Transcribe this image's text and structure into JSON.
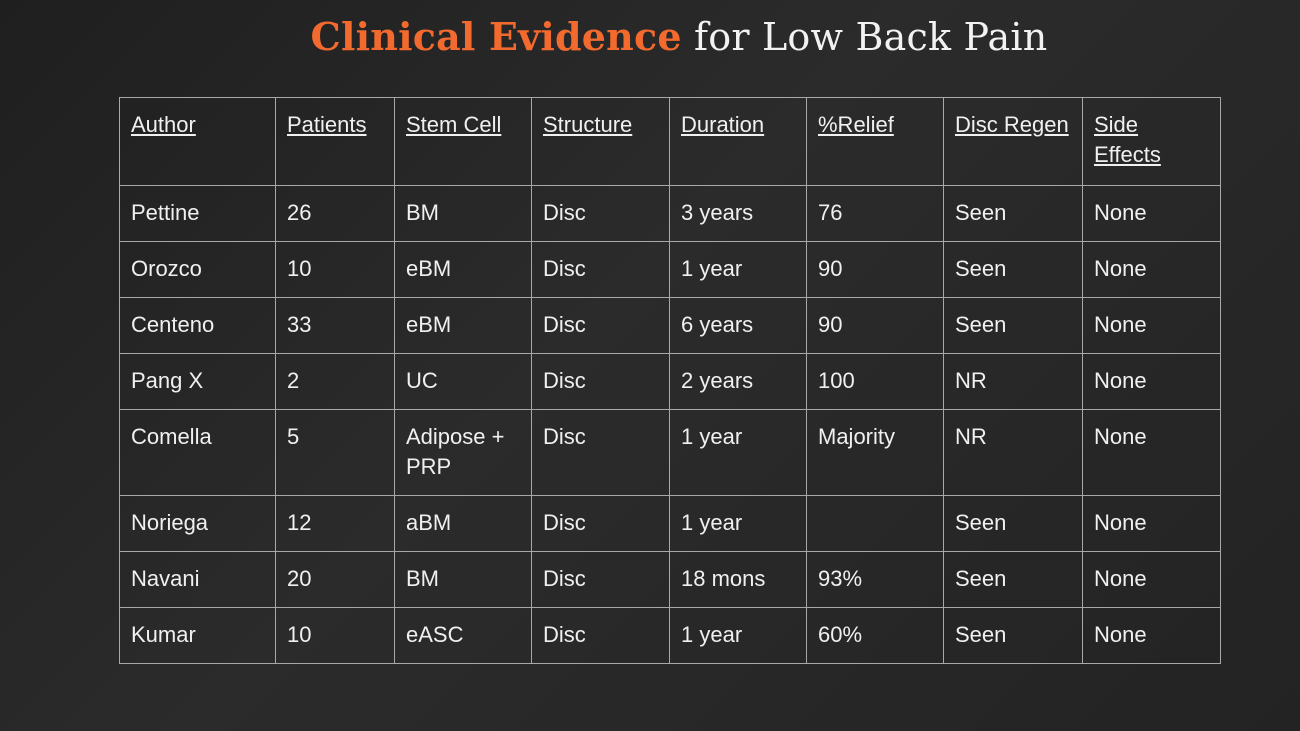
{
  "title": {
    "accent": "Clinical Evidence",
    "rest": "for Low Back Pain"
  },
  "table": {
    "headers": [
      "Author",
      "Patients",
      "Stem Cell",
      "Structure",
      "Duration",
      "%Relief",
      "Disc Regen",
      "Side Effects"
    ],
    "rows": [
      [
        "Pettine",
        "26",
        "BM",
        "Disc",
        "3 years",
        "76",
        "Seen",
        "None"
      ],
      [
        "Orozco",
        "10",
        "eBM",
        "Disc",
        "1 year",
        "90",
        "Seen",
        "None"
      ],
      [
        "Centeno",
        "33",
        "eBM",
        "Disc",
        "6 years",
        "90",
        "Seen",
        "None"
      ],
      [
        "Pang X",
        "2",
        "UC",
        "Disc",
        "2 years",
        "100",
        "NR",
        "None"
      ],
      [
        "Comella",
        "5",
        "Adipose + PRP",
        "Disc",
        "1 year",
        "Majority",
        "NR",
        "None"
      ],
      [
        "Noriega",
        "12",
        "aBM",
        "Disc",
        "1 year",
        "",
        "Seen",
        "None"
      ],
      [
        "Navani",
        "20",
        "BM",
        "Disc",
        "18 mons",
        "93%",
        "Seen",
        "None"
      ],
      [
        "Kumar",
        "10",
        "eASC",
        "Disc",
        "1 year",
        "60%",
        "Seen",
        "None"
      ]
    ]
  },
  "colors": {
    "accent": "#f26a2e",
    "text": "#f0f0f0",
    "border": "#a8a8a8",
    "background": "#262626"
  }
}
